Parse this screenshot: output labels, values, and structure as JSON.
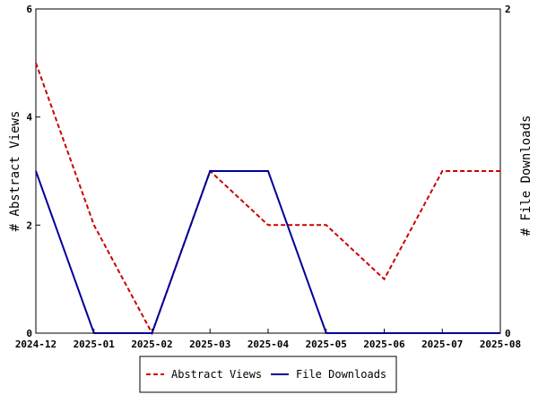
{
  "chart_data": {
    "type": "line",
    "x": [
      "2024-12",
      "2025-01",
      "2025-02",
      "2025-03",
      "2025-04",
      "2025-05",
      "2025-06",
      "2025-07",
      "2025-08"
    ],
    "series": [
      {
        "name": "Abstract Views",
        "axis": "left",
        "color": "#cc0000",
        "dash": "dashed",
        "values": [
          5,
          2,
          0,
          3,
          2,
          2,
          1,
          3,
          3
        ]
      },
      {
        "name": "File Downloads",
        "axis": "right",
        "color": "#000099",
        "dash": "solid",
        "values": [
          1,
          0,
          0,
          1,
          1,
          0,
          0,
          0,
          0
        ]
      }
    ],
    "ylabel": "# Abstract Views",
    "y2label": "# File Downloads",
    "ylim": [
      0,
      6
    ],
    "y2lim": [
      0,
      2
    ],
    "yticks": [
      0,
      2,
      4,
      6
    ],
    "y2ticks": [
      0,
      2
    ],
    "grid": false,
    "legend_position": "bottom"
  }
}
